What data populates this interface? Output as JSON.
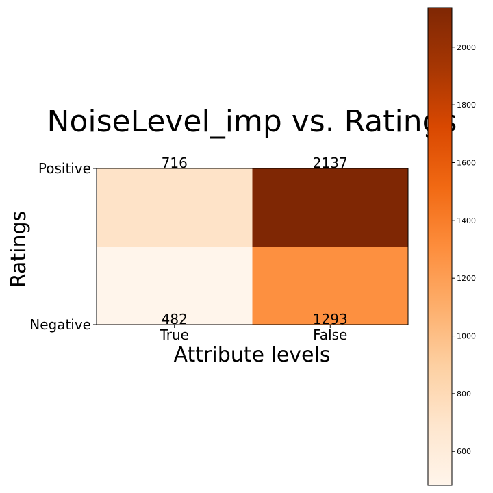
{
  "chart_data": {
    "type": "heatmap",
    "title": "NoiseLevel_imp vs. Ratings",
    "xlabel": "Attribute levels",
    "ylabel": "Ratings",
    "x_categories": [
      "True",
      "False"
    ],
    "y_categories": [
      "Positive",
      "Negative"
    ],
    "values": [
      [
        716,
        2137
      ],
      [
        482,
        1293
      ]
    ],
    "cell_labels": [
      [
        "716",
        "2137"
      ],
      [
        "482",
        "1293"
      ]
    ],
    "colormap": "Oranges",
    "colorbar": {
      "min": 482,
      "max": 2137,
      "ticks": [
        600,
        800,
        1000,
        1200,
        1400,
        1600,
        1800,
        2000
      ],
      "tick_labels": [
        "600",
        "800",
        "1000",
        "1200",
        "1400",
        "1600",
        "1800",
        "2000"
      ]
    }
  }
}
